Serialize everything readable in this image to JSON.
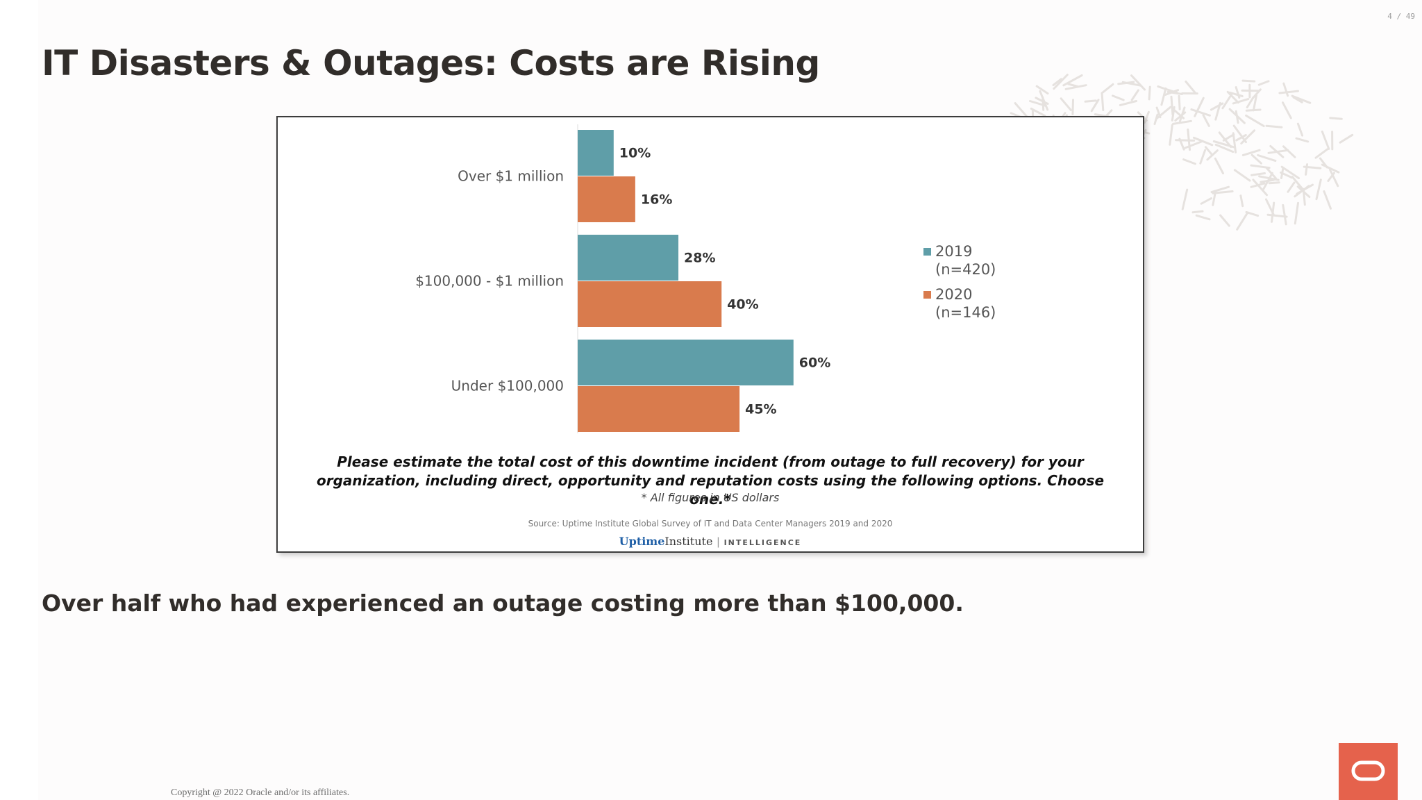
{
  "page": {
    "counter": "4 / 49",
    "title": "IT Disasters & Outages: Costs are Rising",
    "caption": "Over half who had experienced an outage costing more than $100,000.",
    "copyright": "Copyright @ 2022 Oracle and/or its affiliates."
  },
  "icons": {
    "logo": "oracle-logo-icon",
    "decor": "leaf-pattern-decor"
  },
  "colors": {
    "series_2019": "#5f9ea8",
    "series_2020": "#d97b4d",
    "brand_red": "#e5624c"
  },
  "chart_data": {
    "type": "bar",
    "orientation": "horizontal",
    "categories": [
      "Over $1 million",
      "$100,000 - $1 million",
      "Under $100,000"
    ],
    "series": [
      {
        "name": "2019",
        "sample": "(n=420)",
        "values": [
          10,
          28,
          60
        ],
        "labels": [
          "10%",
          "28%",
          "60%"
        ],
        "color": "#5f9ea8"
      },
      {
        "name": "2020",
        "sample": "(n=146)",
        "values": [
          16,
          40,
          45
        ],
        "labels": [
          "16%",
          "40%",
          "45%"
        ],
        "color": "#d97b4d"
      }
    ],
    "xlim": [
      0,
      100
    ],
    "unit": "%",
    "grid": false,
    "legend_position": "right",
    "question": "Please estimate the total cost of this downtime incident (from outage to full recovery) for your organization, including direct, opportunity and reputation costs using the following options. Choose one.*",
    "footnote": "* All figures in US dollars",
    "source": "Source: Uptime Institute Global Survey of IT and Data Center Managers 2019 and 2020",
    "brand": {
      "name_bold": "Uptime",
      "name_rest": "Institute",
      "suffix": "INTELLIGENCE"
    }
  }
}
